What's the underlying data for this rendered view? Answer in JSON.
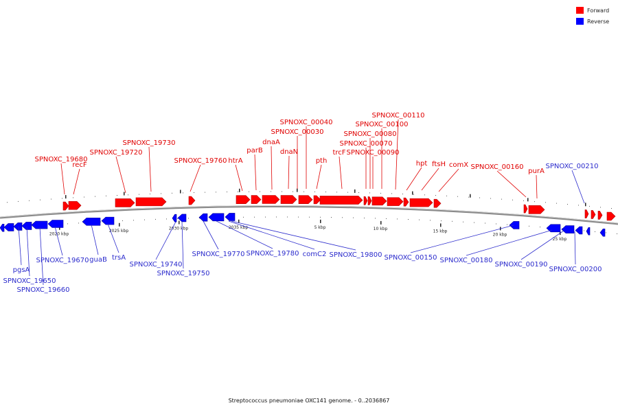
{
  "legend": {
    "forward_label": "Forward",
    "reverse_label": "Reverse",
    "forward_color": "#ff0000",
    "reverse_color": "#0000ff"
  },
  "caption": "Streptococcus pneumoniae OXC141 genome. - 0..2036867",
  "tick_labels": [
    "2020 kbp",
    "2025 kbp",
    "2030 kbp",
    "2035 kbp",
    "5 kbp",
    "10 kbp",
    "15 kbp",
    "20 kbp",
    "25 kbp"
  ],
  "forward_genes": [
    "SPNOXC_19680",
    "recF",
    "SPNOXC_19720",
    "SPNOXC_19730",
    "SPNOXC_19760",
    "htrA",
    "parB",
    "dnaA",
    "dnaN",
    "SPNOXC_00030",
    "SPNOXC_00040",
    "pth",
    "trcF",
    "SPNOXC_00070",
    "SPNOXC_00080",
    "SPNOXC_00090",
    "SPNOXC_00100",
    "SPNOXC_00110",
    "hpt",
    "ftsH",
    "comX",
    "SPNOXC_00160",
    "purA"
  ],
  "reverse_genes": [
    "pgsA",
    "SPNOXC_19650",
    "SPNOXC_19660",
    "SPNOXC_19670",
    "guaB",
    "trsA",
    "SPNOXC_19740",
    "SPNOXC_19750",
    "SPNOXC_19770",
    "SPNOXC_19780",
    "comC2",
    "SPNOXC_19800",
    "SPNOXC_00150",
    "SPNOXC_00180",
    "SPNOXC_00190",
    "SPNOXC_00200",
    "SPNOXC_00210"
  ]
}
